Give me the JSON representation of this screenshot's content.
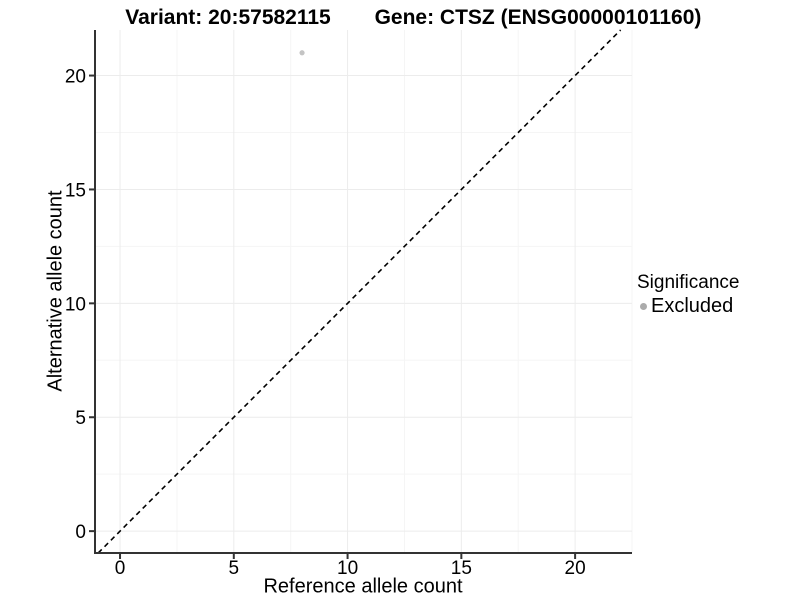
{
  "header": {
    "variant_title": "Variant: 20:57582115",
    "gene_title": "Gene: CTSZ (ENSG00000101160)"
  },
  "chart_data": {
    "type": "scatter",
    "xlabel": "Reference allele count",
    "ylabel": "Alternative allele count",
    "x_ticks": [
      0,
      5,
      10,
      15,
      20
    ],
    "y_ticks": [
      0,
      5,
      10,
      15,
      20
    ],
    "xlim": [
      -1.1,
      22.5
    ],
    "ylim": [
      -0.96,
      22.0
    ],
    "grid": {
      "major": true,
      "minor_x": [
        2.5,
        7.5,
        12.5,
        17.5,
        22.5
      ],
      "minor_y": [
        2.5,
        7.5,
        12.5,
        17.5
      ]
    },
    "points": [
      {
        "x": 8,
        "y": 21,
        "series": "Excluded"
      }
    ],
    "reference_line": {
      "type": "identity",
      "style": "dashed"
    },
    "legend": {
      "title": "Significance",
      "position": "right",
      "items": [
        {
          "label": "Excluded",
          "color": "#ababab"
        }
      ]
    },
    "colors": {
      "point": "#c4c4c4",
      "grid_major": "#ececec",
      "grid_minor": "#f5f5f5",
      "axis": "#333333",
      "tick_text": "#000000",
      "line": "#000000",
      "background": "#ffffff"
    }
  }
}
